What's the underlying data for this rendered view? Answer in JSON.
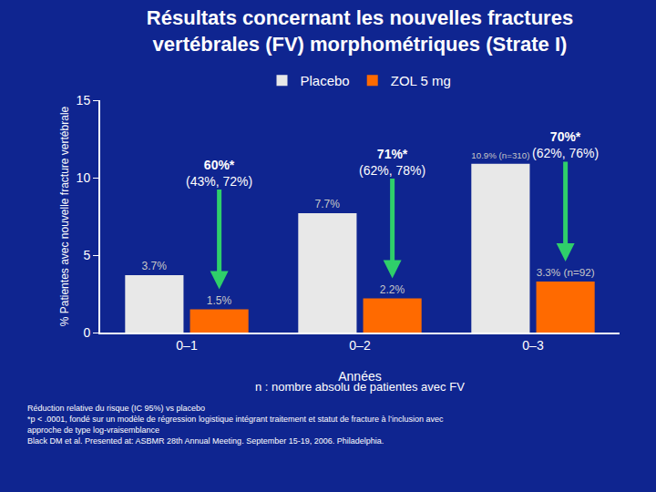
{
  "chart_data": {
    "type": "bar",
    "title": "Résultats concernant les nouvelles fractures vertébrales (FV) morphométriques (Strate I)",
    "x_label": "Années",
    "y_label": "% Patientes avec nouvelle fracture vertébrale",
    "note": "n : nombre absolu de patientes avec FV",
    "categories": [
      "0–1",
      "0–2",
      "0–3"
    ],
    "series": [
      {
        "name": "Placebo",
        "color": "#e8e8e8",
        "values": [
          3.7,
          7.7,
          10.9
        ],
        "value_labels": [
          "3.7%",
          "7.7%",
          "10.9% (n=310)"
        ]
      },
      {
        "name": "ZOL 5 mg",
        "color": "#ff6a00",
        "values": [
          1.5,
          2.2,
          3.3
        ],
        "value_labels": [
          "1.5%",
          "2.2%",
          "3.3% (n=92)"
        ]
      }
    ],
    "annotations": [
      {
        "category": "0–1",
        "series": "ZOL 5 mg",
        "text": "60%*",
        "ci": "(43%, 72%)"
      },
      {
        "category": "0–2",
        "series": "ZOL 5 mg",
        "text": "71%*",
        "ci": "(62%, 78%)"
      },
      {
        "category": "0–3",
        "series": "ZOL 5 mg",
        "text": "70%*",
        "ci": "(62%, 76%)"
      }
    ],
    "footnotes": [
      "Réduction relative du risque (IC 95%) vs placebo",
      "*p < .0001, fondé sur un modèle de régression logistique intégrant traitement et statut de fracture à l’inclusion avec",
      "approche de type log-vraisemblance",
      "Black DM et al. Presented at: ASBMR 28th Annual Meeting. September 15-19, 2006. Philadelphia."
    ],
    "ylim": [
      0,
      15
    ],
    "yticks": [
      0,
      5,
      10,
      15
    ],
    "grid": false,
    "legend": "top",
    "data_labels": true
  }
}
